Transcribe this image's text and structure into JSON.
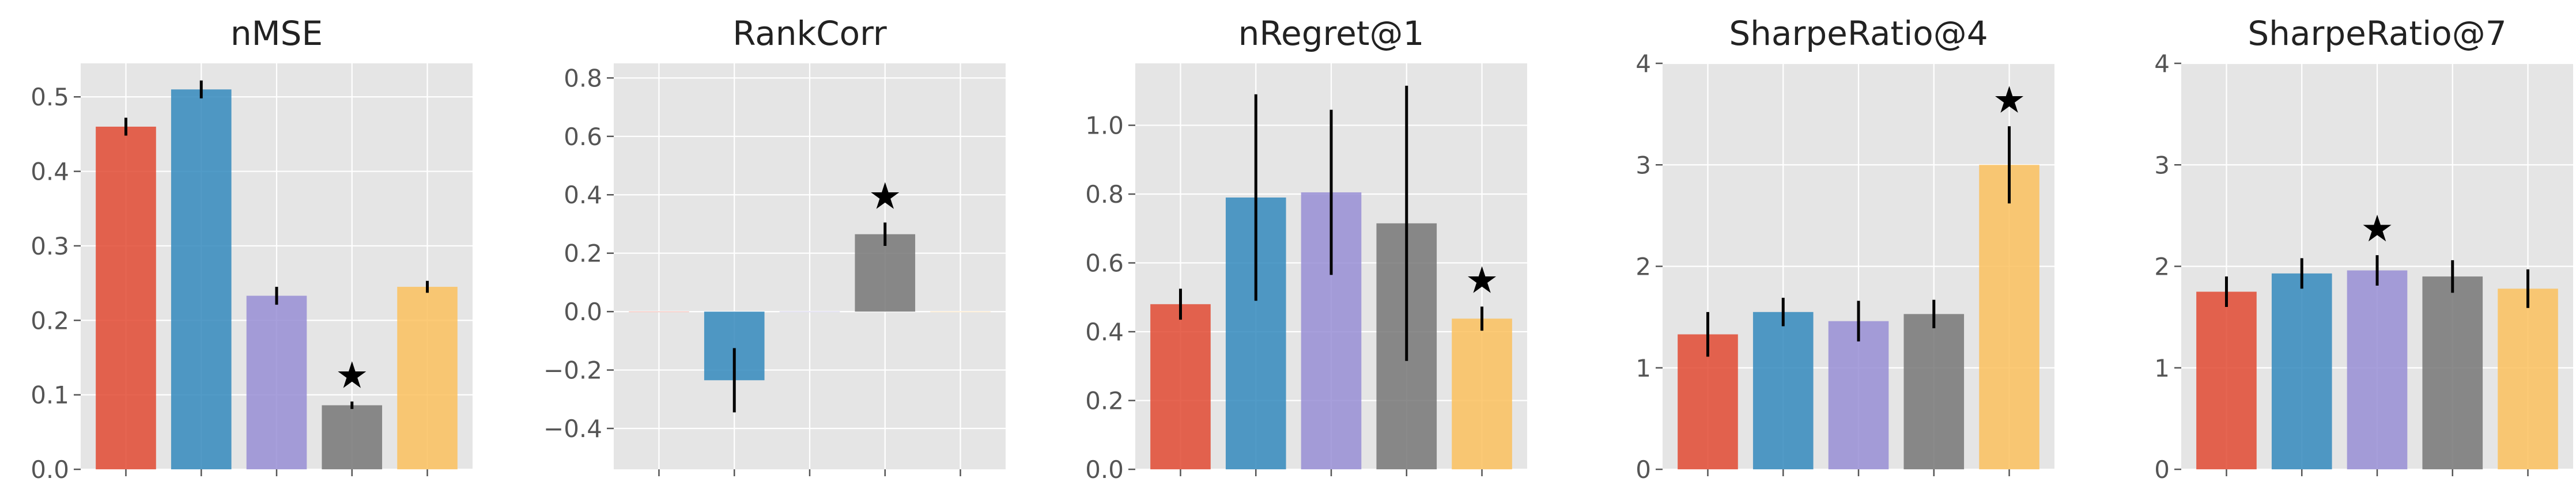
{
  "colors": [
    "#E24A33",
    "#348ABD",
    "#988ED5",
    "#777777",
    "#FBC15E"
  ],
  "star_glyph": "★",
  "chart_data": [
    {
      "type": "bar",
      "title": "nMSE",
      "ylim": [
        0,
        0.545
      ],
      "yticks": [
        0.0,
        0.1,
        0.2,
        0.3,
        0.4,
        0.5
      ],
      "ytick_labels": [
        "0.0",
        "0.1",
        "0.2",
        "0.3",
        "0.4",
        "0.5"
      ],
      "values": [
        0.46,
        0.51,
        0.233,
        0.086,
        0.245
      ],
      "errors": [
        0.012,
        0.012,
        0.012,
        0.005,
        0.008
      ],
      "best_index": 3,
      "grid": true,
      "legend": "none"
    },
    {
      "type": "bar",
      "title": "RankCorr",
      "ylim": [
        -0.54,
        0.85
      ],
      "yticks": [
        -0.4,
        -0.2,
        0.0,
        0.2,
        0.4,
        0.6,
        0.8
      ],
      "ytick_labels": [
        "−0.4",
        "−0.2",
        "0.0",
        "0.2",
        "0.4",
        "0.6",
        "0.8"
      ],
      "values": [
        0.0,
        -0.235,
        0.0,
        0.265,
        0.0
      ],
      "errors": [
        0.0,
        0.11,
        0.0,
        0.04,
        0.0
      ],
      "best_index": 3,
      "grid": true,
      "legend": "none"
    },
    {
      "type": "bar",
      "title": "nRegret@1",
      "ylim": [
        0,
        1.18
      ],
      "yticks": [
        0.0,
        0.2,
        0.4,
        0.6,
        0.8,
        1.0
      ],
      "ytick_labels": [
        "0.0",
        "0.2",
        "0.4",
        "0.6",
        "0.8",
        "1.0"
      ],
      "values": [
        0.48,
        0.79,
        0.805,
        0.715,
        0.438
      ],
      "errors": [
        0.045,
        0.3,
        0.24,
        0.4,
        0.035
      ],
      "best_index": 4,
      "grid": true,
      "legend": "none"
    },
    {
      "type": "bar",
      "title": "SharpeRatio@4",
      "ylim": [
        0,
        4.0
      ],
      "yticks": [
        0,
        1,
        2,
        3,
        4
      ],
      "ytick_labels": [
        "0",
        "1",
        "2",
        "3",
        "4"
      ],
      "values": [
        1.33,
        1.55,
        1.46,
        1.53,
        3.0
      ],
      "errors": [
        0.22,
        0.14,
        0.2,
        0.14,
        0.38
      ],
      "best_index": 4,
      "grid": true,
      "legend": "none"
    },
    {
      "type": "bar",
      "title": "SharpeRatio@7",
      "ylim": [
        0,
        4.0
      ],
      "yticks": [
        0,
        1,
        2,
        3,
        4
      ],
      "ytick_labels": [
        "0",
        "1",
        "2",
        "3",
        "4"
      ],
      "values": [
        1.75,
        1.93,
        1.96,
        1.9,
        1.78
      ],
      "errors": [
        0.15,
        0.15,
        0.15,
        0.16,
        0.19
      ],
      "best_index": 2,
      "grid": true,
      "legend": "none"
    }
  ]
}
